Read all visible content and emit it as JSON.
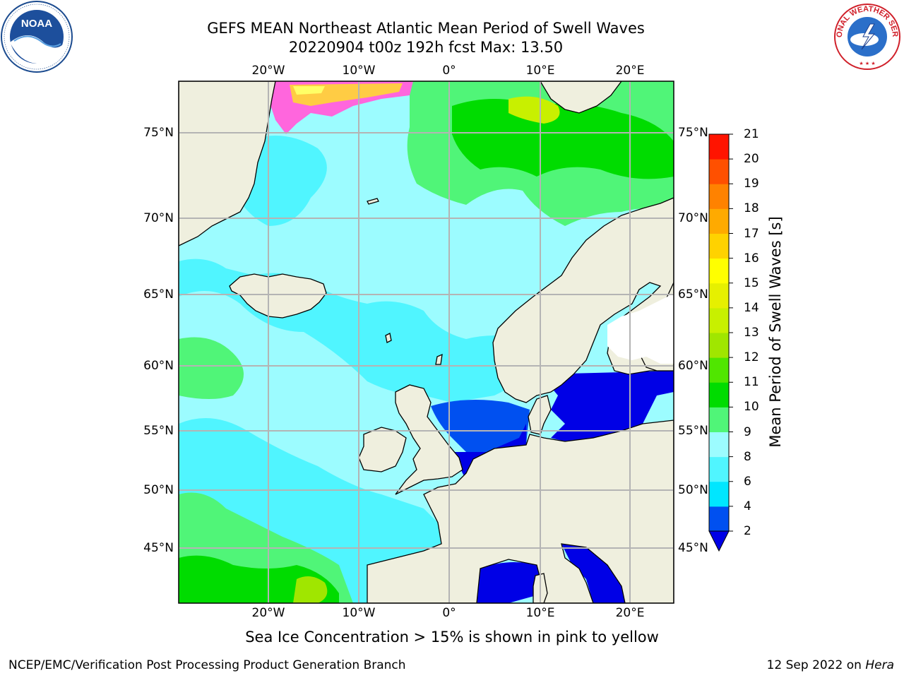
{
  "header": {
    "title_line1": "GEFS MEAN Northeast Atlantic Mean Period of Swell Waves",
    "title_line2": "20220904 t00z 192h fcst   Max: 13.50"
  },
  "logos": {
    "noaa": "NOAA",
    "noaa_ring_text": "NATIONAL OCEANIC AND ATMOSPHERIC ADMINISTRATION · U.S. DEPARTMENT OF COMMERCE",
    "nws_ring_text": "NATIONAL WEATHER SERVICE"
  },
  "map": {
    "lon_labels": [
      "20°W",
      "10°W",
      "0°",
      "10°E",
      "20°E"
    ],
    "lat_labels": [
      "75°N",
      "70°N",
      "65°N",
      "60°N",
      "55°N",
      "50°N",
      "45°N"
    ],
    "lon_range": [
      -30,
      25
    ],
    "lat_range": [
      41,
      78
    ],
    "colors": {
      "land": "#efefde",
      "grid": "#b4b4b4",
      "coast": "#000000"
    }
  },
  "colorbar": {
    "title": "Mean Period of Swell Waves [s]",
    "ticks": [
      "2",
      "4",
      "6",
      "8",
      "9",
      "10",
      "11",
      "12",
      "13",
      "14",
      "15",
      "16",
      "17",
      "18",
      "19",
      "20",
      "21"
    ],
    "colors": [
      "#0050f0",
      "#00e6ff",
      "#50f5ff",
      "#9cfcff",
      "#50f578",
      "#00dc00",
      "#50e600",
      "#a0e600",
      "#c8f000",
      "#e6f000",
      "#ffff00",
      "#ffd200",
      "#ffaa00",
      "#ff8200",
      "#ff5000",
      "#ff1400"
    ],
    "under_color": "#0000e6"
  },
  "caption": "Sea Ice Concentration > 15% is shown in pink to yellow",
  "footer": {
    "left": "NCEP/EMC/Verification Post Processing Product Generation Branch",
    "right_date": "12 Sep 2022 on ",
    "right_machine": "Hera"
  }
}
